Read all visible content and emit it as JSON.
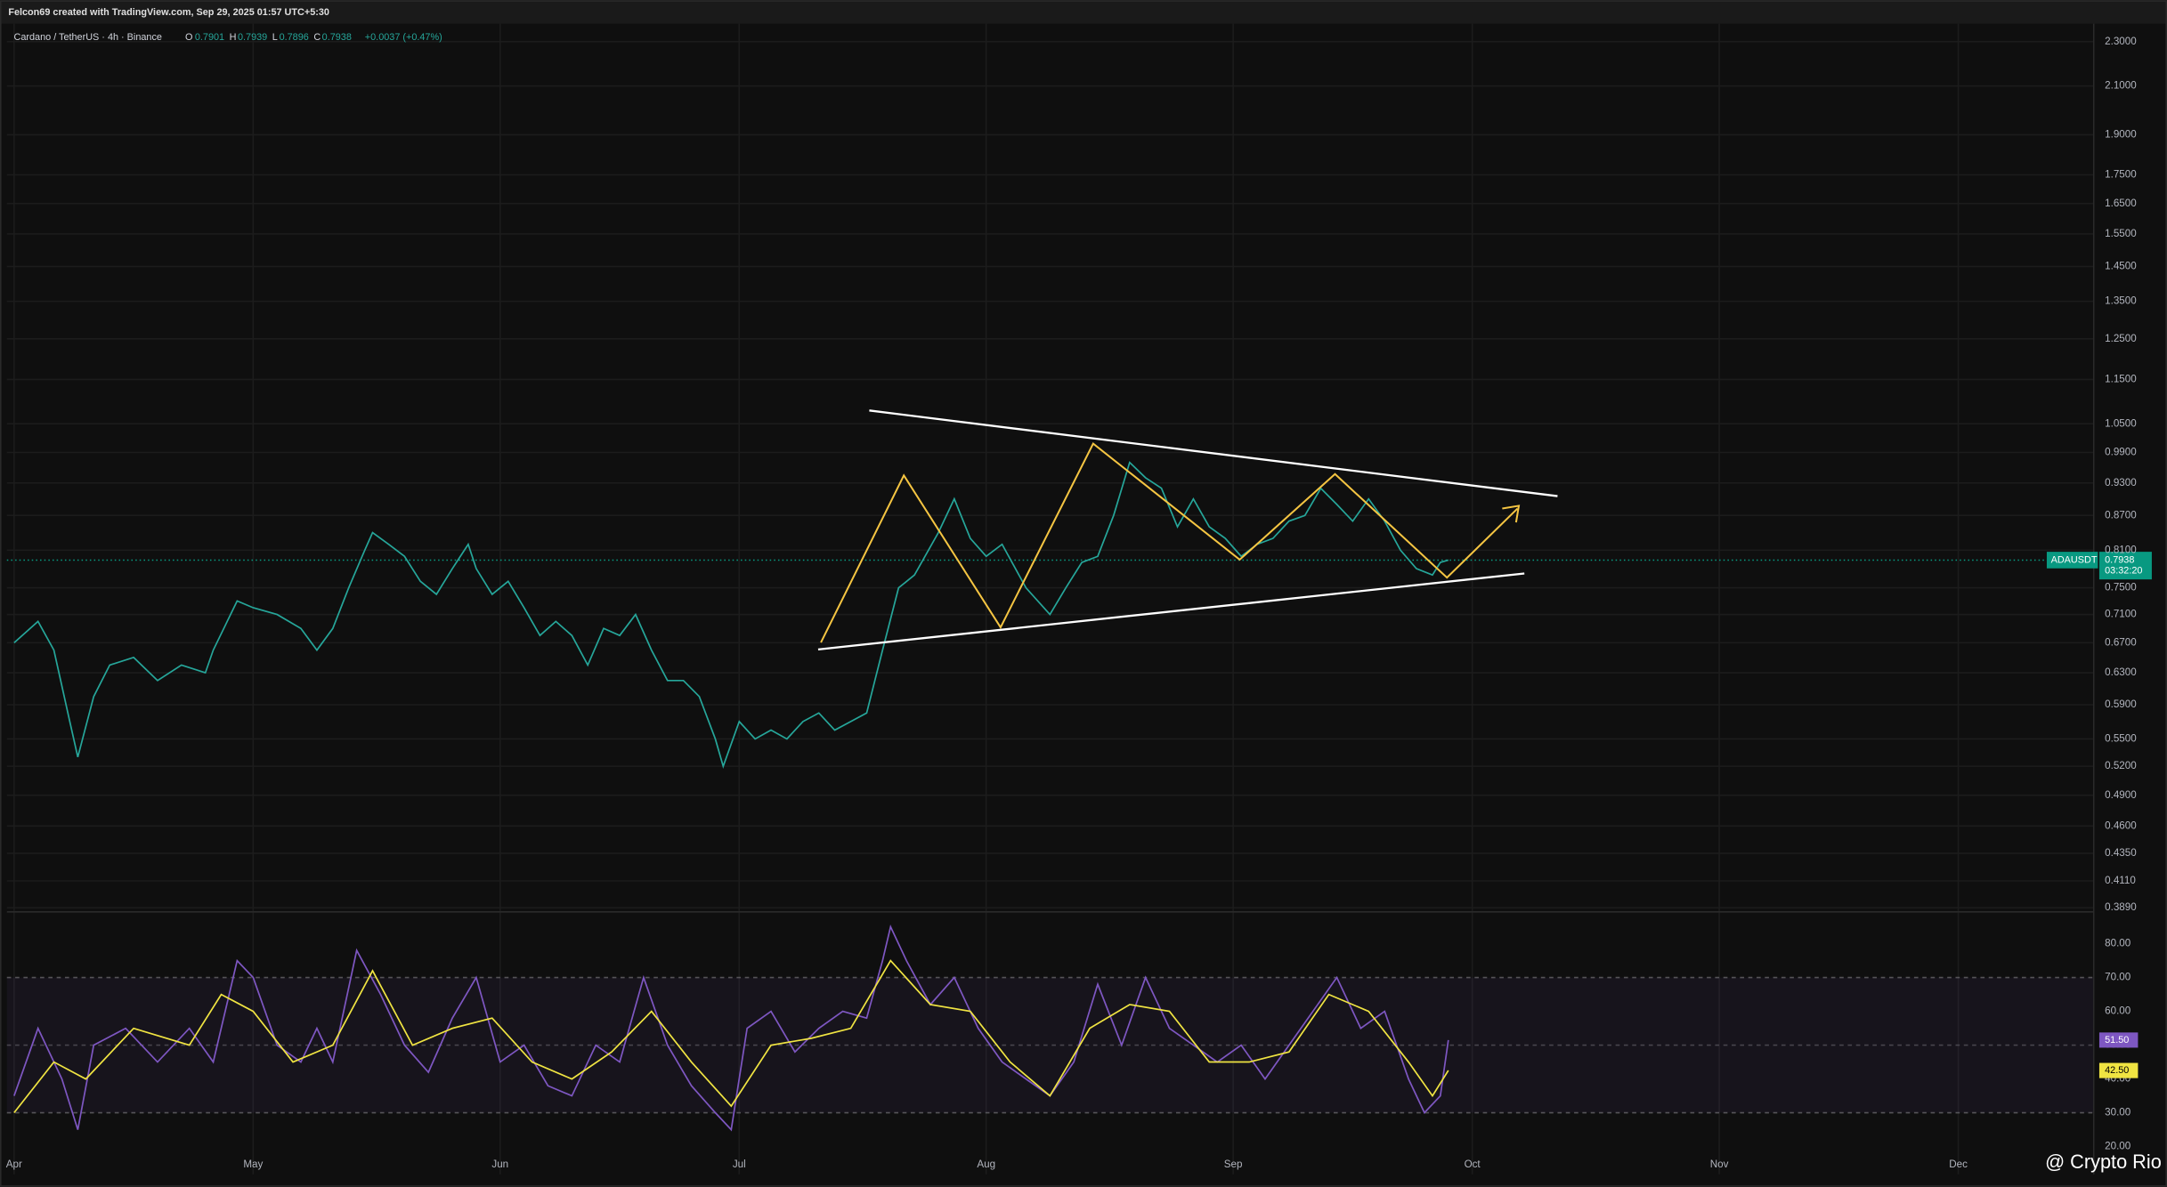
{
  "header": {
    "text": "Felcon69 created with TradingView.com, Sep 29, 2025 01:57 UTC+5:30"
  },
  "legend": {
    "symbol": "Cardano / TetherUS · 4h · Binance",
    "o": "O",
    "o_val": "0.7901",
    "h": "H",
    "h_val": "0.7939",
    "l": "L",
    "l_val": "0.7896",
    "c": "C",
    "c_val": "0.7938",
    "change": "+0.0037 (+0.47%)"
  },
  "price_tag": {
    "symbol": "ADAUSDT",
    "price": "0.7938",
    "countdown": "03:32:20"
  },
  "watermark": "@ Crypto Rio",
  "chart_data": [
    {
      "type": "line",
      "log_scale": true,
      "grid": true,
      "color": "#26a69a",
      "x": [
        0,
        3,
        5,
        7,
        8,
        10,
        12,
        15,
        18,
        21,
        24,
        25,
        28,
        30,
        33,
        36,
        38,
        40,
        42,
        44,
        45,
        47,
        49,
        51,
        53,
        55,
        57,
        58,
        60,
        62,
        64,
        66,
        68,
        70,
        72,
        74,
        76,
        78,
        80,
        82,
        84,
        86,
        88,
        89,
        91,
        93,
        95,
        97,
        99,
        101,
        103,
        105,
        107,
        109,
        111,
        113,
        116,
        118,
        120,
        122,
        124,
        127,
        130,
        132,
        134,
        136,
        138,
        140,
        142,
        144,
        146,
        148,
        150,
        152,
        154,
        156,
        158,
        160,
        162,
        164,
        166,
        168,
        170,
        172,
        174,
        176,
        178,
        179,
        180
      ],
      "values": [
        0.67,
        0.7,
        0.66,
        0.57,
        0.53,
        0.6,
        0.64,
        0.65,
        0.62,
        0.64,
        0.63,
        0.66,
        0.73,
        0.72,
        0.71,
        0.69,
        0.66,
        0.69,
        0.75,
        0.81,
        0.84,
        0.82,
        0.8,
        0.76,
        0.74,
        0.78,
        0.82,
        0.78,
        0.74,
        0.76,
        0.72,
        0.68,
        0.7,
        0.68,
        0.64,
        0.69,
        0.68,
        0.71,
        0.66,
        0.62,
        0.62,
        0.6,
        0.55,
        0.52,
        0.57,
        0.55,
        0.56,
        0.55,
        0.57,
        0.58,
        0.56,
        0.57,
        0.58,
        0.66,
        0.75,
        0.77,
        0.84,
        0.9,
        0.83,
        0.8,
        0.82,
        0.75,
        0.71,
        0.75,
        0.79,
        0.8,
        0.87,
        0.97,
        0.94,
        0.92,
        0.85,
        0.9,
        0.85,
        0.83,
        0.8,
        0.82,
        0.83,
        0.86,
        0.87,
        0.92,
        0.89,
        0.86,
        0.9,
        0.86,
        0.81,
        0.78,
        0.77,
        0.79,
        0.7938
      ],
      "xlim": [
        -0.9,
        261
      ],
      "xticks": [
        {
          "value": 0,
          "label": "Apr"
        },
        {
          "value": 30,
          "label": "May"
        },
        {
          "value": 61,
          "label": "Jun"
        },
        {
          "value": 91,
          "label": "Jul"
        },
        {
          "value": 122,
          "label": "Aug"
        },
        {
          "value": 153,
          "label": "Sep"
        },
        {
          "value": 183,
          "label": "Oct"
        },
        {
          "value": 214,
          "label": "Nov"
        },
        {
          "value": 244,
          "label": "Dec"
        }
      ],
      "ylim": [
        0.3857,
        2.386
      ],
      "yticks": [
        {
          "value": 2.3,
          "label": "2.3000"
        },
        {
          "value": 2.1,
          "label": "2.1000"
        },
        {
          "value": 1.9,
          "label": "1.9000"
        },
        {
          "value": 1.75,
          "label": "1.7500"
        },
        {
          "value": 1.65,
          "label": "1.6500"
        },
        {
          "value": 1.55,
          "label": "1.5500"
        },
        {
          "value": 1.45,
          "label": "1.4500"
        },
        {
          "value": 1.35,
          "label": "1.3500"
        },
        {
          "value": 1.25,
          "label": "1.2500"
        },
        {
          "value": 1.15,
          "label": "1.1500"
        },
        {
          "value": 1.05,
          "label": "1.0500"
        },
        {
          "value": 0.99,
          "label": "0.9900"
        },
        {
          "value": 0.93,
          "label": "0.9300"
        },
        {
          "value": 0.87,
          "label": "0.8700"
        },
        {
          "value": 0.81,
          "label": "0.8100"
        },
        {
          "value": 0.75,
          "label": "0.7500"
        },
        {
          "value": 0.71,
          "label": "0.7100"
        },
        {
          "value": 0.67,
          "label": "0.6700"
        },
        {
          "value": 0.63,
          "label": "0.6300"
        },
        {
          "value": 0.59,
          "label": "0.5900"
        },
        {
          "value": 0.55,
          "label": "0.5500"
        },
        {
          "value": 0.52,
          "label": "0.5200"
        },
        {
          "value": 0.49,
          "label": "0.4900"
        },
        {
          "value": 0.46,
          "label": "0.4600"
        },
        {
          "value": 0.435,
          "label": "0.4350"
        },
        {
          "value": 0.411,
          "label": "0.4110"
        },
        {
          "value": 0.389,
          "label": "0.3890"
        }
      ],
      "last_value": 0.7938
    },
    {
      "type": "line",
      "xlim": [
        -0.9,
        261
      ],
      "ylim": [
        11.8,
        88.6
      ],
      "bands": [
        30,
        70
      ],
      "midline": 50,
      "yticks": [
        {
          "value": 80,
          "label": "80.00"
        },
        {
          "value": 70,
          "label": "70.00"
        },
        {
          "value": 60,
          "label": "60.00"
        },
        {
          "value": 50,
          "label": "50.00"
        },
        {
          "value": 40,
          "label": "40.00"
        },
        {
          "value": 30,
          "label": "30.00"
        },
        {
          "value": 20,
          "label": "20.00"
        }
      ],
      "series": [
        {
          "color": "#7e57c2",
          "x": [
            0,
            3,
            6,
            8,
            10,
            14,
            18,
            22,
            25,
            28,
            30,
            33,
            36,
            38,
            40,
            43,
            46,
            49,
            52,
            55,
            58,
            61,
            64,
            67,
            70,
            73,
            76,
            79,
            82,
            85,
            88,
            90,
            92,
            95,
            98,
            101,
            104,
            107,
            109,
            110,
            112,
            115,
            118,
            121,
            124,
            127,
            130,
            133,
            136,
            139,
            142,
            145,
            148,
            151,
            154,
            157,
            160,
            163,
            166,
            169,
            172,
            175,
            177,
            179,
            180
          ],
          "values": [
            35,
            55,
            40,
            25,
            50,
            55,
            45,
            55,
            45,
            75,
            70,
            50,
            45,
            55,
            45,
            78,
            65,
            50,
            42,
            58,
            70,
            45,
            50,
            38,
            35,
            50,
            45,
            70,
            50,
            38,
            30,
            25,
            55,
            60,
            48,
            55,
            60,
            58,
            75,
            85,
            75,
            62,
            70,
            55,
            45,
            40,
            35,
            45,
            68,
            50,
            70,
            55,
            50,
            45,
            50,
            40,
            50,
            60,
            70,
            55,
            60,
            40,
            30,
            35,
            51.5
          ],
          "current_label": "51.50"
        },
        {
          "color": "#f0e442",
          "x": [
            0,
            5,
            9,
            15,
            22,
            26,
            30,
            35,
            40,
            45,
            50,
            55,
            60,
            65,
            70,
            75,
            80,
            85,
            90,
            95,
            100,
            105,
            110,
            115,
            120,
            125,
            130,
            135,
            140,
            145,
            150,
            155,
            160,
            165,
            170,
            175,
            178,
            180
          ],
          "values": [
            30,
            45,
            40,
            55,
            50,
            65,
            60,
            45,
            50,
            72,
            50,
            55,
            58,
            45,
            40,
            48,
            60,
            45,
            32,
            50,
            52,
            55,
            75,
            62,
            60,
            45,
            35,
            55,
            62,
            60,
            45,
            45,
            48,
            65,
            60,
            45,
            35,
            42.5
          ],
          "current_label": "42.50"
        }
      ]
    }
  ]
}
